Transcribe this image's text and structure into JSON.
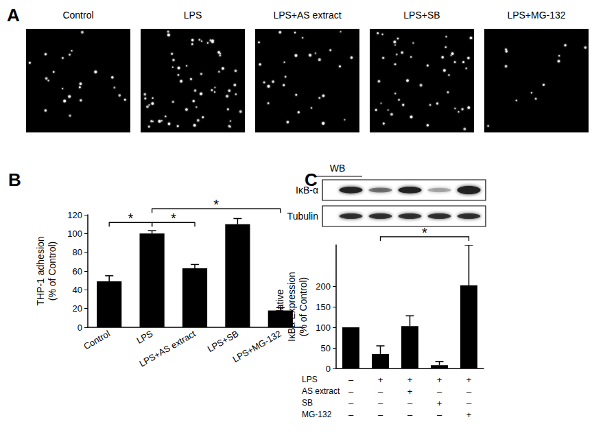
{
  "panel_labels": [
    "A",
    "B",
    "C"
  ],
  "images": {
    "labels": [
      "Control",
      "LPS",
      "LPS+AS extract",
      "LPS+SB",
      "LPS+MG-132"
    ],
    "spots": [
      22,
      60,
      28,
      45,
      12
    ]
  },
  "blot": {
    "header": "WB",
    "rows": [
      "IκB-α",
      "Tubulin"
    ]
  },
  "chart_data": [
    {
      "type": "bar",
      "categories": [
        "Control",
        "LPS",
        "LPS+AS extract",
        "LPS+SB",
        "LPS+MG-132"
      ],
      "values": [
        49,
        100,
        63,
        110,
        18
      ],
      "errors": [
        6,
        3,
        4,
        6,
        3
      ],
      "color": "#000000",
      "ylabel": "THP-1 adhesion\n(% of Control)",
      "ylim": [
        0,
        120
      ],
      "yticks": [
        0,
        20,
        40,
        60,
        80,
        100,
        120
      ],
      "grid": false,
      "annotations": [
        {
          "text": "*",
          "from": 0,
          "to": 1
        },
        {
          "text": "*",
          "from": 1,
          "to": 2
        },
        {
          "text": "*",
          "from": 1,
          "to": 4
        }
      ]
    },
    {
      "type": "bar",
      "categories": [
        null,
        null,
        null,
        null,
        null
      ],
      "values": [
        100,
        35,
        103,
        8,
        202
      ],
      "errors": [
        0,
        20,
        25,
        9,
        98
      ],
      "color": "#000000",
      "ylabel": "Relative\nIκBα Expression\n(% of Control)",
      "ylim": [
        0,
        300
      ],
      "yticks": [
        0,
        50,
        100,
        150,
        200
      ],
      "grid": false,
      "treatments": [
        {
          "name": "LPS",
          "signs": [
            "–",
            "+",
            "+",
            "+",
            "+"
          ]
        },
        {
          "name": "AS extract",
          "signs": [
            "–",
            "–",
            "+",
            "–",
            "–"
          ]
        },
        {
          "name": "SB",
          "signs": [
            "–",
            "–",
            "–",
            "+",
            "–"
          ]
        },
        {
          "name": "MG-132",
          "signs": [
            "–",
            "–",
            "–",
            "–",
            "+"
          ]
        }
      ],
      "annotations": [
        {
          "text": "*",
          "from": 1,
          "to": 4
        }
      ]
    }
  ]
}
